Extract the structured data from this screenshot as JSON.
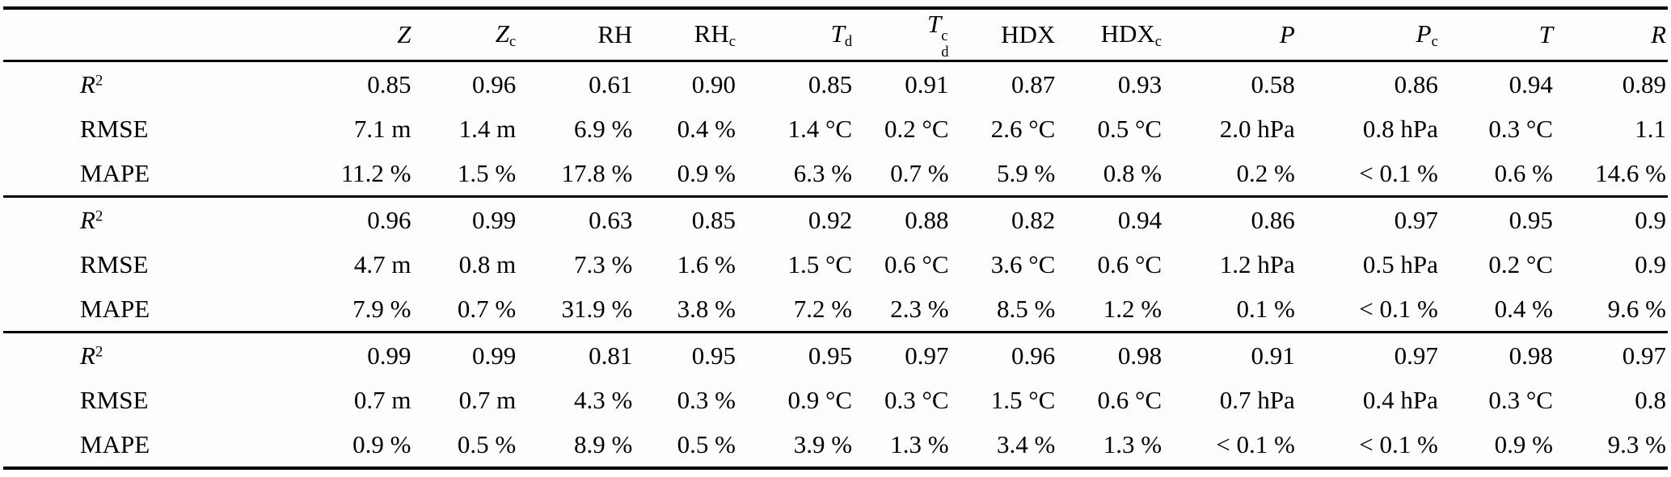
{
  "page": {
    "background_color": "#fdfdfd",
    "text_color": "#000000",
    "rule_color": "#000000"
  },
  "table": {
    "columns": [
      {
        "key": "metric",
        "base": "",
        "italic": false
      },
      {
        "key": "z",
        "base": "Z",
        "italic": true
      },
      {
        "key": "zc",
        "base": "Z",
        "sub": "c",
        "italic": true
      },
      {
        "key": "rh",
        "base": "RH",
        "italic": false
      },
      {
        "key": "rhc",
        "base": "RH",
        "sub": "c",
        "italic": false
      },
      {
        "key": "td",
        "base": "T",
        "sub": "d",
        "italic": true
      },
      {
        "key": "tdc",
        "base": "T",
        "sub": "d",
        "sup": "c",
        "italic": true
      },
      {
        "key": "hdx",
        "base": "HDX",
        "italic": false
      },
      {
        "key": "hdxc",
        "base": "HDX",
        "sub": "c",
        "italic": false
      },
      {
        "key": "p",
        "base": "P",
        "italic": true
      },
      {
        "key": "pc",
        "base": "P",
        "sub": "c",
        "italic": true
      },
      {
        "key": "t",
        "base": "T",
        "italic": true
      },
      {
        "key": "r",
        "base": "R",
        "italic": true
      }
    ],
    "blocks": [
      {
        "rows": [
          {
            "label": {
              "base": "R",
              "sup": "2",
              "italic": true
            },
            "values": [
              "0.85",
              "0.96",
              "0.61",
              "0.90",
              "0.85",
              "0.91",
              "0.87",
              "0.93",
              "0.58",
              "0.86",
              "0.94",
              "0.89"
            ]
          },
          {
            "label": {
              "base": "RMSE",
              "italic": false
            },
            "values": [
              "7.1 m",
              "1.4 m",
              "6.9 %",
              "0.4 %",
              "1.4 °C",
              "0.2 °C",
              "2.6 °C",
              "0.5 °C",
              "2.0 hPa",
              "0.8 hPa",
              "0.3 °C",
              "1.1"
            ]
          },
          {
            "label": {
              "base": "MAPE",
              "italic": false
            },
            "values": [
              "11.2 %",
              "1.5 %",
              "17.8 %",
              "0.9 %",
              "6.3 %",
              "0.7 %",
              "5.9 %",
              "0.8 %",
              "0.2 %",
              "< 0.1 %",
              "0.6 %",
              "14.6 %"
            ]
          }
        ]
      },
      {
        "rows": [
          {
            "label": {
              "base": "R",
              "sup": "2",
              "italic": true
            },
            "values": [
              "0.96",
              "0.99",
              "0.63",
              "0.85",
              "0.92",
              "0.88",
              "0.82",
              "0.94",
              "0.86",
              "0.97",
              "0.95",
              "0.9"
            ]
          },
          {
            "label": {
              "base": "RMSE",
              "italic": false
            },
            "values": [
              "4.7 m",
              "0.8 m",
              "7.3 %",
              "1.6 %",
              "1.5 °C",
              "0.6 °C",
              "3.6 °C",
              "0.6 °C",
              "1.2 hPa",
              "0.5 hPa",
              "0.2 °C",
              "0.9"
            ]
          },
          {
            "label": {
              "base": "MAPE",
              "italic": false
            },
            "values": [
              "7.9 %",
              "0.7 %",
              "31.9 %",
              "3.8 %",
              "7.2 %",
              "2.3 %",
              "8.5 %",
              "1.2 %",
              "0.1 %",
              "< 0.1 %",
              "0.4 %",
              "9.6 %"
            ]
          }
        ]
      },
      {
        "rows": [
          {
            "label": {
              "base": "R",
              "sup": "2",
              "italic": true
            },
            "values": [
              "0.99",
              "0.99",
              "0.81",
              "0.95",
              "0.95",
              "0.97",
              "0.96",
              "0.98",
              "0.91",
              "0.97",
              "0.98",
              "0.97"
            ]
          },
          {
            "label": {
              "base": "RMSE",
              "italic": false
            },
            "values": [
              "0.7 m",
              "0.7 m",
              "4.3 %",
              "0.3 %",
              "0.9 °C",
              "0.3 °C",
              "1.5 °C",
              "0.6 °C",
              "0.7 hPa",
              "0.4 hPa",
              "0.3 °C",
              "0.8"
            ]
          },
          {
            "label": {
              "base": "MAPE",
              "italic": false
            },
            "values": [
              "0.9 %",
              "0.5 %",
              "8.9 %",
              "0.5 %",
              "3.9 %",
              "1.3 %",
              "3.4 %",
              "1.3 %",
              "< 0.1 %",
              "< 0.1 %",
              "0.9 %",
              "9.3 %"
            ]
          }
        ]
      }
    ]
  }
}
